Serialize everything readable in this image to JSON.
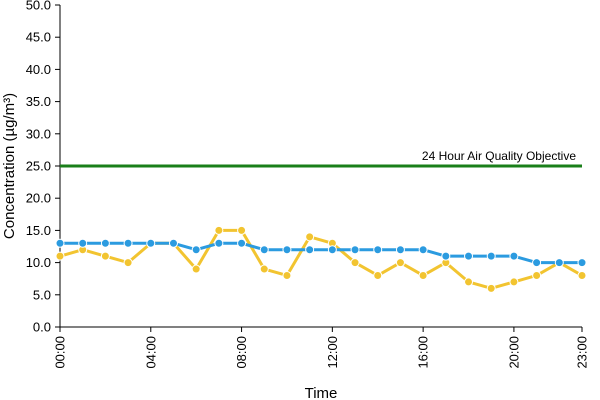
{
  "chart_data": {
    "type": "line",
    "title": "",
    "xlabel": "Time",
    "ylabel": "Concentration (µg/m³)",
    "ylim": [
      0,
      50
    ],
    "y_ticks": [
      "0.0",
      "5.0",
      "10.0",
      "15.0",
      "20.0",
      "25.0",
      "30.0",
      "35.0",
      "40.0",
      "45.0",
      "50.0"
    ],
    "x_tick_labels": [
      "00:00",
      "04:00",
      "08:00",
      "12:00",
      "16:00",
      "20:00",
      "23:00"
    ],
    "x_tick_hours": [
      0,
      4,
      8,
      12,
      16,
      20,
      23
    ],
    "x": [
      0,
      1,
      2,
      3,
      4,
      5,
      6,
      7,
      8,
      9,
      10,
      11,
      12,
      13,
      14,
      15,
      16,
      17,
      18,
      19,
      20,
      21,
      22,
      23
    ],
    "grid": false,
    "series": [
      {
        "color": "#2b9be0",
        "values": [
          13,
          13,
          13,
          13,
          13,
          13,
          12,
          13,
          13,
          12,
          12,
          12,
          12,
          12,
          12,
          12,
          12,
          11,
          11,
          11,
          11,
          10,
          10,
          10
        ]
      },
      {
        "color": "#f2c430",
        "values": [
          11,
          12,
          11,
          10,
          13,
          13,
          9,
          15,
          15,
          9,
          8,
          14,
          13,
          10,
          8,
          10,
          8,
          10,
          7,
          6,
          7,
          8,
          10,
          8
        ]
      }
    ],
    "reference_line": {
      "value": 25,
      "label": "24 Hour Air Quality Objective",
      "color": "#1a7f1a"
    }
  }
}
